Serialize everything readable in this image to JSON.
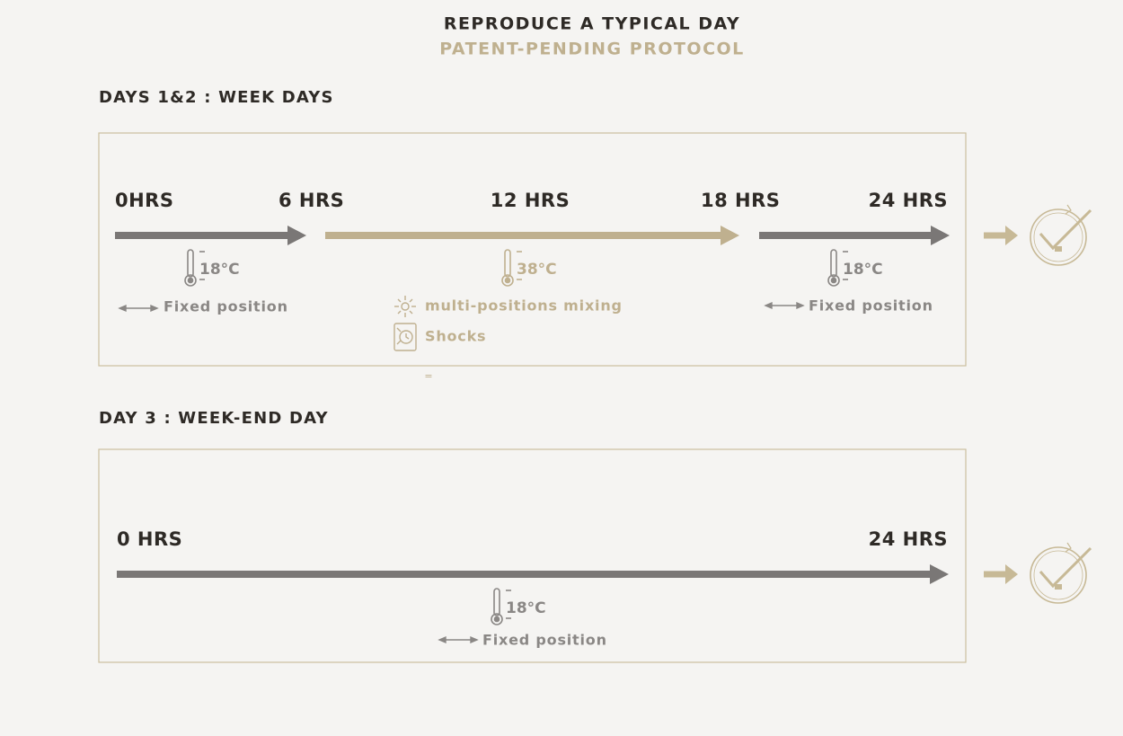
{
  "header": {
    "title": "REPRODUCE A TYPICAL DAY",
    "subtitle": "PATENT-PENDING PROTOCOL"
  },
  "sections": [
    {
      "title": "DAYS 1&2 : WEEK DAYS",
      "hours": [
        "0HRS",
        "6 HRS",
        "12 HRS",
        "18 HRS",
        "24 HRS"
      ],
      "phases": [
        {
          "temperature": "18°C",
          "notes": [
            "Fixed position"
          ]
        },
        {
          "temperature": "38°C",
          "notes": [
            "multi-positions mixing",
            "Shocks"
          ]
        },
        {
          "temperature": "18°C",
          "notes": [
            "Fixed position"
          ]
        }
      ]
    },
    {
      "title": "DAY 3 : WEEK-END DAY",
      "hours": [
        "0 HRS",
        "24 HRS"
      ],
      "phases": [
        {
          "temperature": "18°C",
          "notes": [
            "Fixed position"
          ]
        }
      ]
    }
  ],
  "divider": "="
}
